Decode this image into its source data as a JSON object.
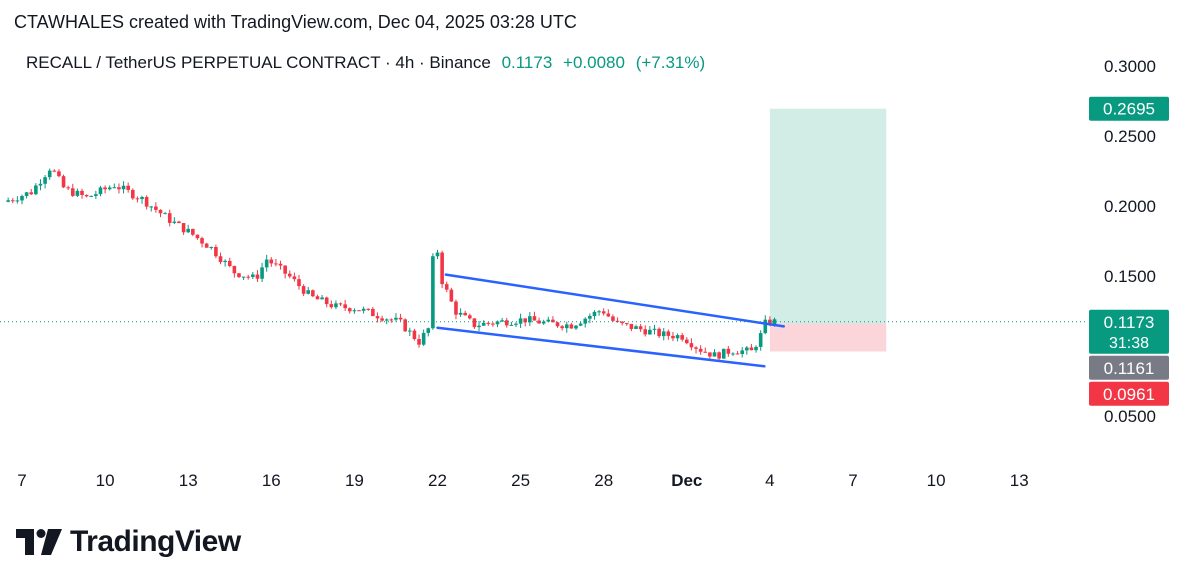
{
  "header": {
    "attribution": "CTAWHALES created with TradingView.com, Dec 04, 2025 03:28 UTC"
  },
  "legend": {
    "symbol": "RECALL / TetherUS PERPETUAL CONTRACT · 4h · Binance",
    "last": "0.1173",
    "change": "+0.0080",
    "change_pct": "(+7.31%)"
  },
  "footer": {
    "brand": "TradingView"
  },
  "colors": {
    "up": "#089981",
    "down": "#f23645",
    "channel": "#2962ff",
    "target_zone": "#d2ede6",
    "stop_zone": "#fbd5d9",
    "price_line": "#089981",
    "axis_grey": "#787b86"
  },
  "price_axis": {
    "ticks": [
      {
        "label": "0.3000",
        "value": 0.3
      },
      {
        "label": "0.2500",
        "value": 0.25
      },
      {
        "label": "0.2000",
        "value": 0.2
      },
      {
        "label": "0.1500",
        "value": 0.15
      },
      {
        "label": "0.0500",
        "value": 0.05
      }
    ],
    "badges": [
      {
        "label": "0.2695",
        "sub": "",
        "value": 0.2695,
        "color": "#089981"
      },
      {
        "label": "0.1173",
        "sub": "31:38",
        "value": 0.1173,
        "color": "#089981"
      },
      {
        "label": "0.1161",
        "sub": "",
        "value": 0.1161,
        "color": "#787b86"
      },
      {
        "label": "0.0961",
        "sub": "",
        "value": 0.0961,
        "color": "#f23645"
      }
    ]
  },
  "time_axis": {
    "ticks": [
      {
        "label": "7",
        "day": 7,
        "bold": false
      },
      {
        "label": "10",
        "day": 10,
        "bold": false
      },
      {
        "label": "13",
        "day": 13,
        "bold": false
      },
      {
        "label": "16",
        "day": 16,
        "bold": false
      },
      {
        "label": "19",
        "day": 19,
        "bold": false
      },
      {
        "label": "22",
        "day": 22,
        "bold": false
      },
      {
        "label": "25",
        "day": 25,
        "bold": false
      },
      {
        "label": "28",
        "day": 28,
        "bold": false
      },
      {
        "label": "Dec",
        "day": 31,
        "bold": true
      },
      {
        "label": "4",
        "day": 34,
        "bold": false
      },
      {
        "label": "7",
        "day": 37,
        "bold": false
      },
      {
        "label": "10",
        "day": 40,
        "bold": false
      },
      {
        "label": "13",
        "day": 43,
        "bold": false
      }
    ]
  },
  "chart_data": {
    "type": "candlestick",
    "interval": "4h",
    "ylim": [
      0.02,
      0.32
    ],
    "xlim_days": [
      6.5,
      46
    ],
    "price_path": [
      [
        6.5,
        0.203
      ],
      [
        7.5,
        0.21
      ],
      [
        8.2,
        0.228
      ],
      [
        8.7,
        0.212
      ],
      [
        9.5,
        0.206
      ],
      [
        10.5,
        0.215
      ],
      [
        11.5,
        0.205
      ],
      [
        12.5,
        0.19
      ],
      [
        13.3,
        0.18
      ],
      [
        14.0,
        0.17
      ],
      [
        14.8,
        0.153
      ],
      [
        15.6,
        0.148
      ],
      [
        16.0,
        0.162
      ],
      [
        16.8,
        0.15
      ],
      [
        17.6,
        0.135
      ],
      [
        18.5,
        0.128
      ],
      [
        19.2,
        0.127
      ],
      [
        20.0,
        0.122
      ],
      [
        20.8,
        0.117
      ],
      [
        21.5,
        0.103
      ],
      [
        21.9,
        0.114
      ],
      [
        22.05,
        0.185
      ],
      [
        22.3,
        0.148
      ],
      [
        22.8,
        0.125
      ],
      [
        23.5,
        0.115
      ],
      [
        24.3,
        0.117
      ],
      [
        25.3,
        0.119
      ],
      [
        26.2,
        0.116
      ],
      [
        27.0,
        0.115
      ],
      [
        27.7,
        0.122
      ],
      [
        28.1,
        0.126
      ],
      [
        28.6,
        0.116
      ],
      [
        29.5,
        0.112
      ],
      [
        30.3,
        0.108
      ],
      [
        31.0,
        0.107
      ],
      [
        31.6,
        0.098
      ],
      [
        32.2,
        0.093
      ],
      [
        32.8,
        0.097
      ],
      [
        33.5,
        0.096
      ],
      [
        33.8,
        0.106
      ],
      [
        34.0,
        0.116
      ],
      [
        34.2,
        0.1173
      ]
    ],
    "channel": {
      "upper": [
        [
          22.3,
          0.151
        ],
        [
          34.5,
          0.114
        ]
      ],
      "lower": [
        [
          22.0,
          0.113
        ],
        [
          33.8,
          0.0855
        ]
      ]
    },
    "position": {
      "entry": 0.1161,
      "target": 0.2695,
      "stop": 0.0961,
      "start_day": 34.0,
      "end_day": 38.2
    },
    "last_price": 0.1173
  }
}
